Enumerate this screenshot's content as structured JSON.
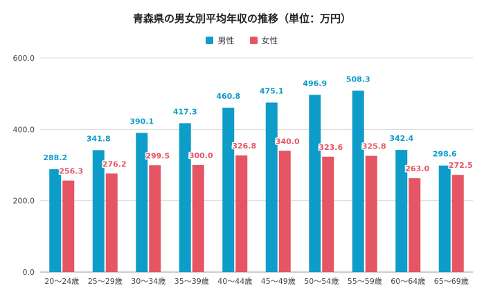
{
  "chart_data": {
    "type": "bar",
    "title": "青森県の男女別平均年収の推移（単位：万円）",
    "categories": [
      "20〜24歳",
      "25〜29歳",
      "30〜34歳",
      "35〜39歳",
      "40〜44歳",
      "45〜49歳",
      "50〜54歳",
      "55〜59歳",
      "60〜64歳",
      "65〜69歳"
    ],
    "series": [
      {
        "name": "男性",
        "color": "#0e9cc9",
        "label_color": "#0e9cc9",
        "values": [
          288.2,
          341.8,
          390.1,
          417.3,
          460.8,
          475.1,
          496.9,
          508.3,
          342.4,
          298.6
        ]
      },
      {
        "name": "女性",
        "color": "#e65564",
        "label_color": "#e65564",
        "values": [
          256.3,
          276.2,
          299.5,
          300.0,
          326.8,
          340.0,
          323.6,
          325.8,
          263.0,
          272.5
        ]
      }
    ],
    "value_labels": {
      "男性": [
        "288.2",
        "341.8",
        "390.1",
        "417.3",
        "460.8",
        "475.1",
        "496.9",
        "508.3",
        "342.4",
        "298.6"
      ],
      "女性": [
        "256.3",
        "276.2",
        "299.5",
        "300.0",
        "326.8",
        "340.0",
        "323.6",
        "325.8",
        "263.0",
        "272.5"
      ]
    },
    "ylim": [
      0,
      600
    ],
    "yticks": [
      0,
      200,
      400,
      600
    ],
    "ytick_labels": [
      "0.0",
      "200.0",
      "400.0",
      "600.0"
    ],
    "grid": true,
    "legend_position": "top-center",
    "xlabel": "",
    "ylabel": ""
  }
}
